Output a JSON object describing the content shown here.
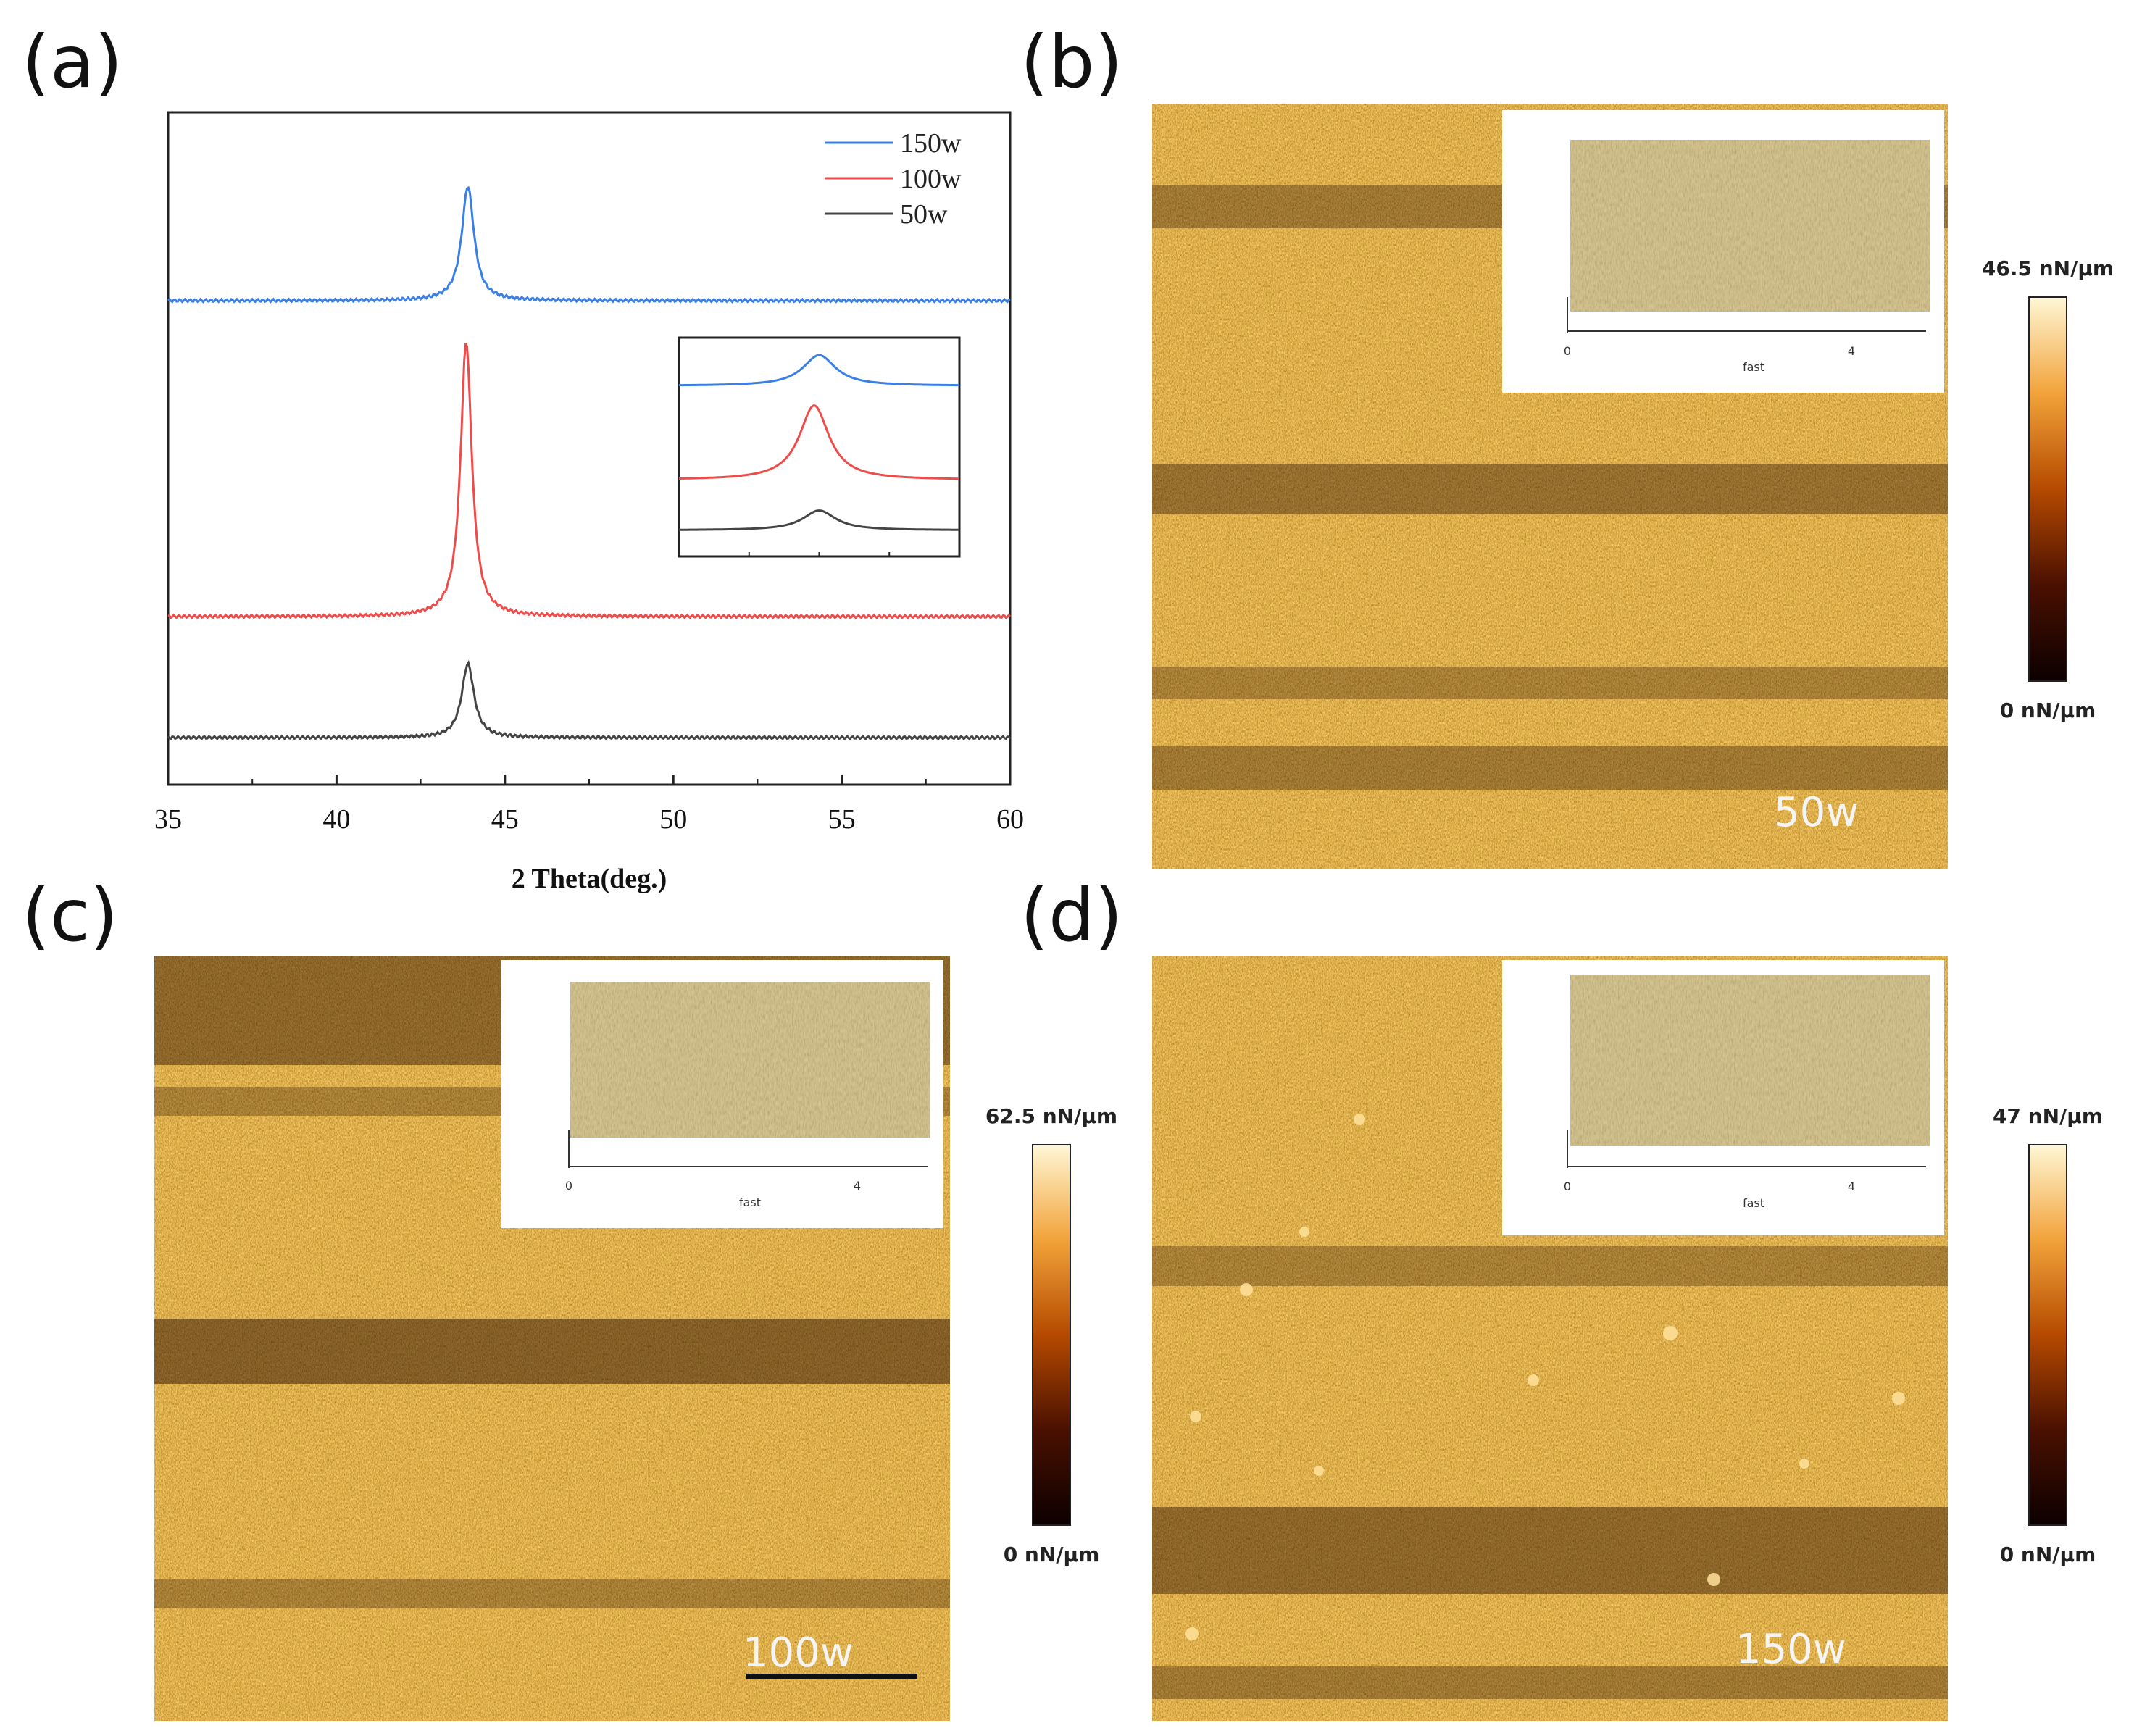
{
  "panel_labels": [
    "(a)",
    "(b)",
    "(c)",
    "(d)"
  ],
  "chart_data": {
    "type": "line",
    "xlabel": "2 Theta(deg.)",
    "ylabel": "",
    "xlim": [
      35,
      60
    ],
    "xticks": [
      "35",
      "40",
      "45",
      "50",
      "55",
      "60"
    ],
    "series": [
      {
        "name": "150w",
        "color": "#3a7fe6",
        "baseline": 0.72,
        "peak_x": 43.9,
        "peak_height": 0.17,
        "width": 0.22
      },
      {
        "name": "100w",
        "color": "#ee4b4b",
        "baseline": 0.25,
        "peak_x": 43.85,
        "peak_height": 0.41,
        "width": 0.2
      },
      {
        "name": "50w",
        "color": "#444444",
        "baseline": 0.07,
        "peak_x": 43.9,
        "peak_height": 0.11,
        "width": 0.22
      }
    ],
    "inset": {
      "description": "magnified peak region",
      "xticks": [
        "",
        "",
        "",
        "",
        ""
      ]
    }
  },
  "afm_panels": [
    {
      "id": "b",
      "label": "50w",
      "colorbar_max": "46.5 nN/µm",
      "colorbar_min": "0 nN/µm",
      "inset_axis_label": "fast",
      "inset_tick_0": "0",
      "inset_tick_1": "4"
    },
    {
      "id": "c",
      "label": "100w",
      "colorbar_max": "62.5 nN/µm",
      "colorbar_min": "0 nN/µm",
      "inset_axis_label": "fast",
      "inset_tick_0": "0",
      "inset_tick_1": "4"
    },
    {
      "id": "d",
      "label": "150w",
      "colorbar_max": "47 nN/µm",
      "colorbar_min": "0 nN/µm",
      "inset_axis_label": "fast",
      "inset_tick_0": "0",
      "inset_tick_1": "4"
    }
  ],
  "colors": {
    "afm_dark": "#2a0d00",
    "afm_mid": "#b5650f",
    "afm_light": "#ffd27a",
    "colorbar_top": "#fff7d6",
    "colorbar_bottom": "#0c0000"
  }
}
